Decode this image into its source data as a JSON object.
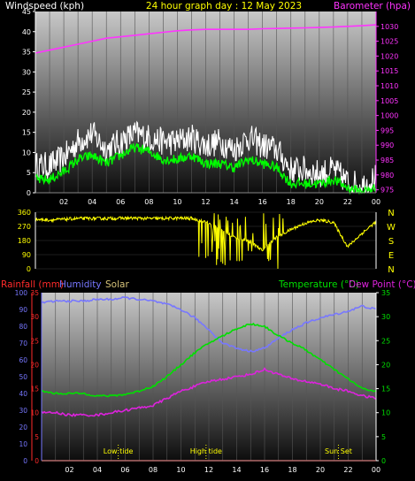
{
  "colors": {
    "wind_gust": "#ffffff",
    "wind_avg": "#00ff00",
    "barometer": "#ff33ff",
    "direction": "#ffff00",
    "temperature": "#00e000",
    "dew_point": "#dd22dd",
    "humidity": "#7777ff",
    "rainfall": "#ff2a2a",
    "solar": "#d6c37a",
    "tide": "#ffff00",
    "panel_top": "#c8c8c8",
    "panel_bottom": "#0d0d0d"
  },
  "top": {
    "title": "24 hour graph day : 12 May 2023",
    "left_label": "Windspeed (kph)",
    "right_label": "Barometer (hpa)",
    "x_ticks": [
      "02",
      "04",
      "06",
      "08",
      "10",
      "12",
      "14",
      "16",
      "18",
      "20",
      "22",
      "00"
    ],
    "left_ticks": [
      "0",
      "5",
      "10",
      "15",
      "20",
      "25",
      "30",
      "35",
      "40",
      "45"
    ],
    "right_ticks": [
      "975",
      "980",
      "985",
      "990",
      "995",
      "1000",
      "1005",
      "1010",
      "1015",
      "1020",
      "1025",
      "1030"
    ]
  },
  "middle": {
    "left_ticks": [
      "0",
      "90",
      "180",
      "270",
      "360"
    ],
    "compass": [
      "N",
      "W",
      "S",
      "E",
      "N"
    ]
  },
  "bottom": {
    "labels": {
      "rainfall": "Rainfall (mm)",
      "humidity": "Humidity",
      "solar": "Solar",
      "temperature": "Temperature (°C)",
      "dew_point": "Dew Point (°C)"
    },
    "x_ticks": [
      "02",
      "04",
      "06",
      "08",
      "10",
      "12",
      "14",
      "16",
      "18",
      "20",
      "22",
      "00"
    ],
    "rain_ticks": [
      "0",
      "5",
      "10",
      "15",
      "20",
      "25",
      "30",
      "35"
    ],
    "humidity_ticks": [
      "0",
      "10",
      "20",
      "30",
      "40",
      "50",
      "60",
      "70",
      "80",
      "90",
      "100"
    ],
    "temp_ticks": [
      "0",
      "5",
      "10",
      "15",
      "20",
      "25",
      "30",
      "35"
    ],
    "annotations": [
      {
        "label": "Low tide",
        "hour": 5.5
      },
      {
        "label": "High tide",
        "hour": 11.8
      },
      {
        "label": "Sun Set",
        "hour": 21.3
      }
    ]
  },
  "chart_data": [
    {
      "type": "line",
      "title": "24 hour graph day : 12 May 2023",
      "xlabel": "",
      "ylabel": "Windspeed (kph)",
      "ylim": [
        0,
        45
      ],
      "y2label": "Barometer (hpa)",
      "y2lim": [
        974,
        1035
      ],
      "x": [
        0,
        1,
        2,
        3,
        4,
        5,
        6,
        7,
        8,
        9,
        10,
        11,
        12,
        13,
        14,
        15,
        16,
        17,
        18,
        19,
        20,
        21,
        22,
        23,
        24
      ],
      "series": [
        {
          "axis": "left",
          "values": [
            6,
            6,
            8,
            12,
            14,
            10,
            12,
            14,
            13,
            12,
            12,
            13,
            11,
            12,
            10,
            13,
            11,
            10,
            5,
            5,
            4,
            5,
            2,
            1,
            3
          ]
        },
        {
          "axis": "left",
          "values": [
            3,
            3,
            5,
            8,
            9,
            7,
            9,
            11,
            10,
            8,
            8,
            9,
            7,
            7,
            6,
            8,
            7,
            6,
            2,
            2,
            2,
            3,
            1,
            0,
            1
          ]
        },
        {
          "axis": "right",
          "values": [
            1021,
            1022,
            1023,
            1024,
            1025,
            1026,
            1026.5,
            1027,
            1027.5,
            1028,
            1028.5,
            1028.8,
            1029,
            1029,
            1029,
            1029,
            1029.2,
            1029.3,
            1029.4,
            1029.5,
            1029.6,
            1029.8,
            1030,
            1030.2,
            1030.5
          ]
        }
      ]
    },
    {
      "type": "scatter",
      "title": "",
      "xlabel": "",
      "ylabel": "",
      "ylim": [
        0,
        360
      ],
      "x": [
        0,
        1,
        2,
        3,
        4,
        5,
        6,
        7,
        8,
        9,
        10,
        11,
        12,
        13,
        14,
        15,
        16,
        17,
        18,
        19,
        20,
        21,
        22,
        23,
        24
      ],
      "series": [
        {
          "values": [
            315,
            310,
            315,
            320,
            320,
            320,
            322,
            322,
            320,
            320,
            322,
            320,
            300,
            250,
            200,
            180,
            120,
            200,
            250,
            290,
            310,
            295,
            140,
            225,
            300
          ]
        }
      ]
    },
    {
      "type": "line",
      "title": "",
      "xlabel": "",
      "ylabel": "Humidity",
      "ylim": [
        0,
        100
      ],
      "y2label": "Temperature (°C)",
      "y2lim": [
        0,
        35
      ],
      "x": [
        0,
        1,
        2,
        3,
        4,
        5,
        6,
        7,
        8,
        9,
        10,
        11,
        12,
        13,
        14,
        15,
        16,
        17,
        18,
        19,
        20,
        21,
        22,
        23,
        24
      ],
      "series": [
        {
          "name": "Humidity",
          "axis": "left",
          "values": [
            94,
            95,
            95,
            95,
            96,
            96,
            97,
            96,
            95,
            93,
            90,
            85,
            78,
            70,
            67,
            65,
            67,
            73,
            78,
            82,
            85,
            87,
            89,
            92,
            90
          ]
        },
        {
          "name": "Temperature (°C)",
          "axis": "right",
          "values": [
            14.5,
            14,
            14,
            14,
            13.5,
            13.5,
            13.8,
            14.5,
            15.5,
            17.5,
            20,
            22.5,
            24.5,
            26,
            27.5,
            28.5,
            28,
            26,
            24.5,
            23,
            21,
            19,
            17,
            15,
            14.5
          ]
        },
        {
          "name": "Dew Point (°C)",
          "axis": "right",
          "values": [
            10,
            10,
            9.5,
            9.5,
            9.5,
            10,
            10.5,
            11,
            11.5,
            13,
            14.5,
            15.5,
            16.5,
            17,
            17.5,
            18,
            19,
            18,
            17,
            16.5,
            16,
            15,
            14.5,
            13.5,
            13
          ]
        },
        {
          "name": "Rainfall (mm)",
          "axis": "left",
          "values": [
            0,
            0,
            0,
            0,
            0,
            0,
            0,
            0,
            0,
            0,
            0,
            0,
            0,
            0,
            0,
            0,
            0,
            0,
            0,
            0,
            0,
            0,
            0,
            0,
            0
          ]
        }
      ]
    }
  ]
}
